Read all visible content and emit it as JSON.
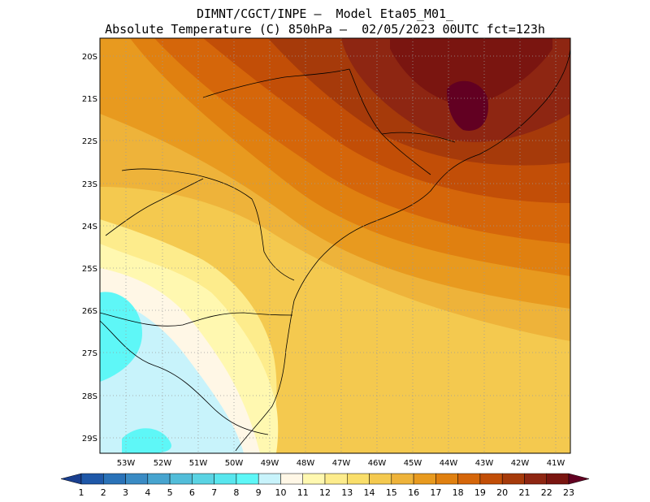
{
  "header": {
    "line1": "DIMNT/CGCT/INPE –  Model Eta05_M01_",
    "line2": "Absolute Temperature (C) 850hPa –  02/05/2023 00UTC fct=123h"
  },
  "map": {
    "lat_labels": [
      "20S",
      "21S",
      "22S",
      "23S",
      "24S",
      "25S",
      "26S",
      "27S",
      "28S",
      "29S"
    ],
    "lon_labels": [
      "53W",
      "52W",
      "51W",
      "50W",
      "49W",
      "48W",
      "47W",
      "46W",
      "45W",
      "44W",
      "43W",
      "42W",
      "41W"
    ]
  },
  "colorbar": {
    "labels": [
      "1",
      "2",
      "3",
      "4",
      "5",
      "6",
      "7",
      "8",
      "9",
      "10",
      "11",
      "12",
      "13",
      "14",
      "15",
      "16",
      "17",
      "18",
      "19",
      "20",
      "21",
      "22",
      "23"
    ],
    "colors": [
      "#1a3f8f",
      "#1f58a8",
      "#2a72b8",
      "#3a8bc4",
      "#47a4cf",
      "#52bdd9",
      "#5ad3e3",
      "#58e6ee",
      "#5ef7f7",
      "#c8f3fb",
      "#fff7e6",
      "#fff8b0",
      "#fdec8c",
      "#f9de6a",
      "#f4c94f",
      "#eeb33a",
      "#e89a1f",
      "#e08010",
      "#d5660a",
      "#c24e07",
      "#a63a0a",
      "#8e2612",
      "#7a1510",
      "#620022"
    ]
  }
}
